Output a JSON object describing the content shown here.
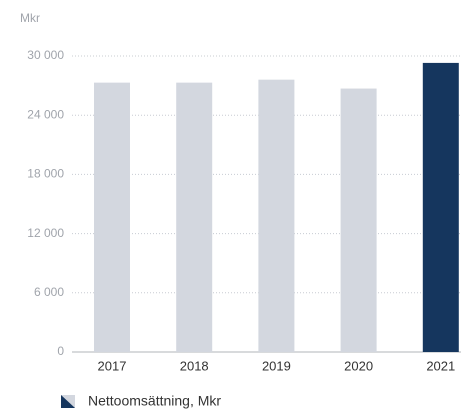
{
  "chart_data": {
    "type": "bar",
    "y_unit": "Mkr",
    "categories": [
      "2017",
      "2018",
      "2019",
      "2020",
      "2021"
    ],
    "series": [
      {
        "name": "Nettoomsättning, Mkr",
        "color": "#15365e",
        "colors": [
          "#d3d7df",
          "#d3d7df",
          "#d3d7df",
          "#d3d7df",
          "#15365e"
        ],
        "values": [
          27300,
          27300,
          27600,
          26700,
          29300
        ]
      }
    ],
    "ylim": [
      0,
      30000
    ],
    "yticks": [
      0,
      {
        "value": 6000,
        "label": "6 000"
      },
      {
        "value": 12000,
        "label": "12 000"
      },
      {
        "value": 18000,
        "label": "18 000"
      },
      {
        "value": 24000,
        "label": "24 000"
      },
      {
        "value": 30000,
        "label": "30 000"
      }
    ],
    "grid": true
  }
}
